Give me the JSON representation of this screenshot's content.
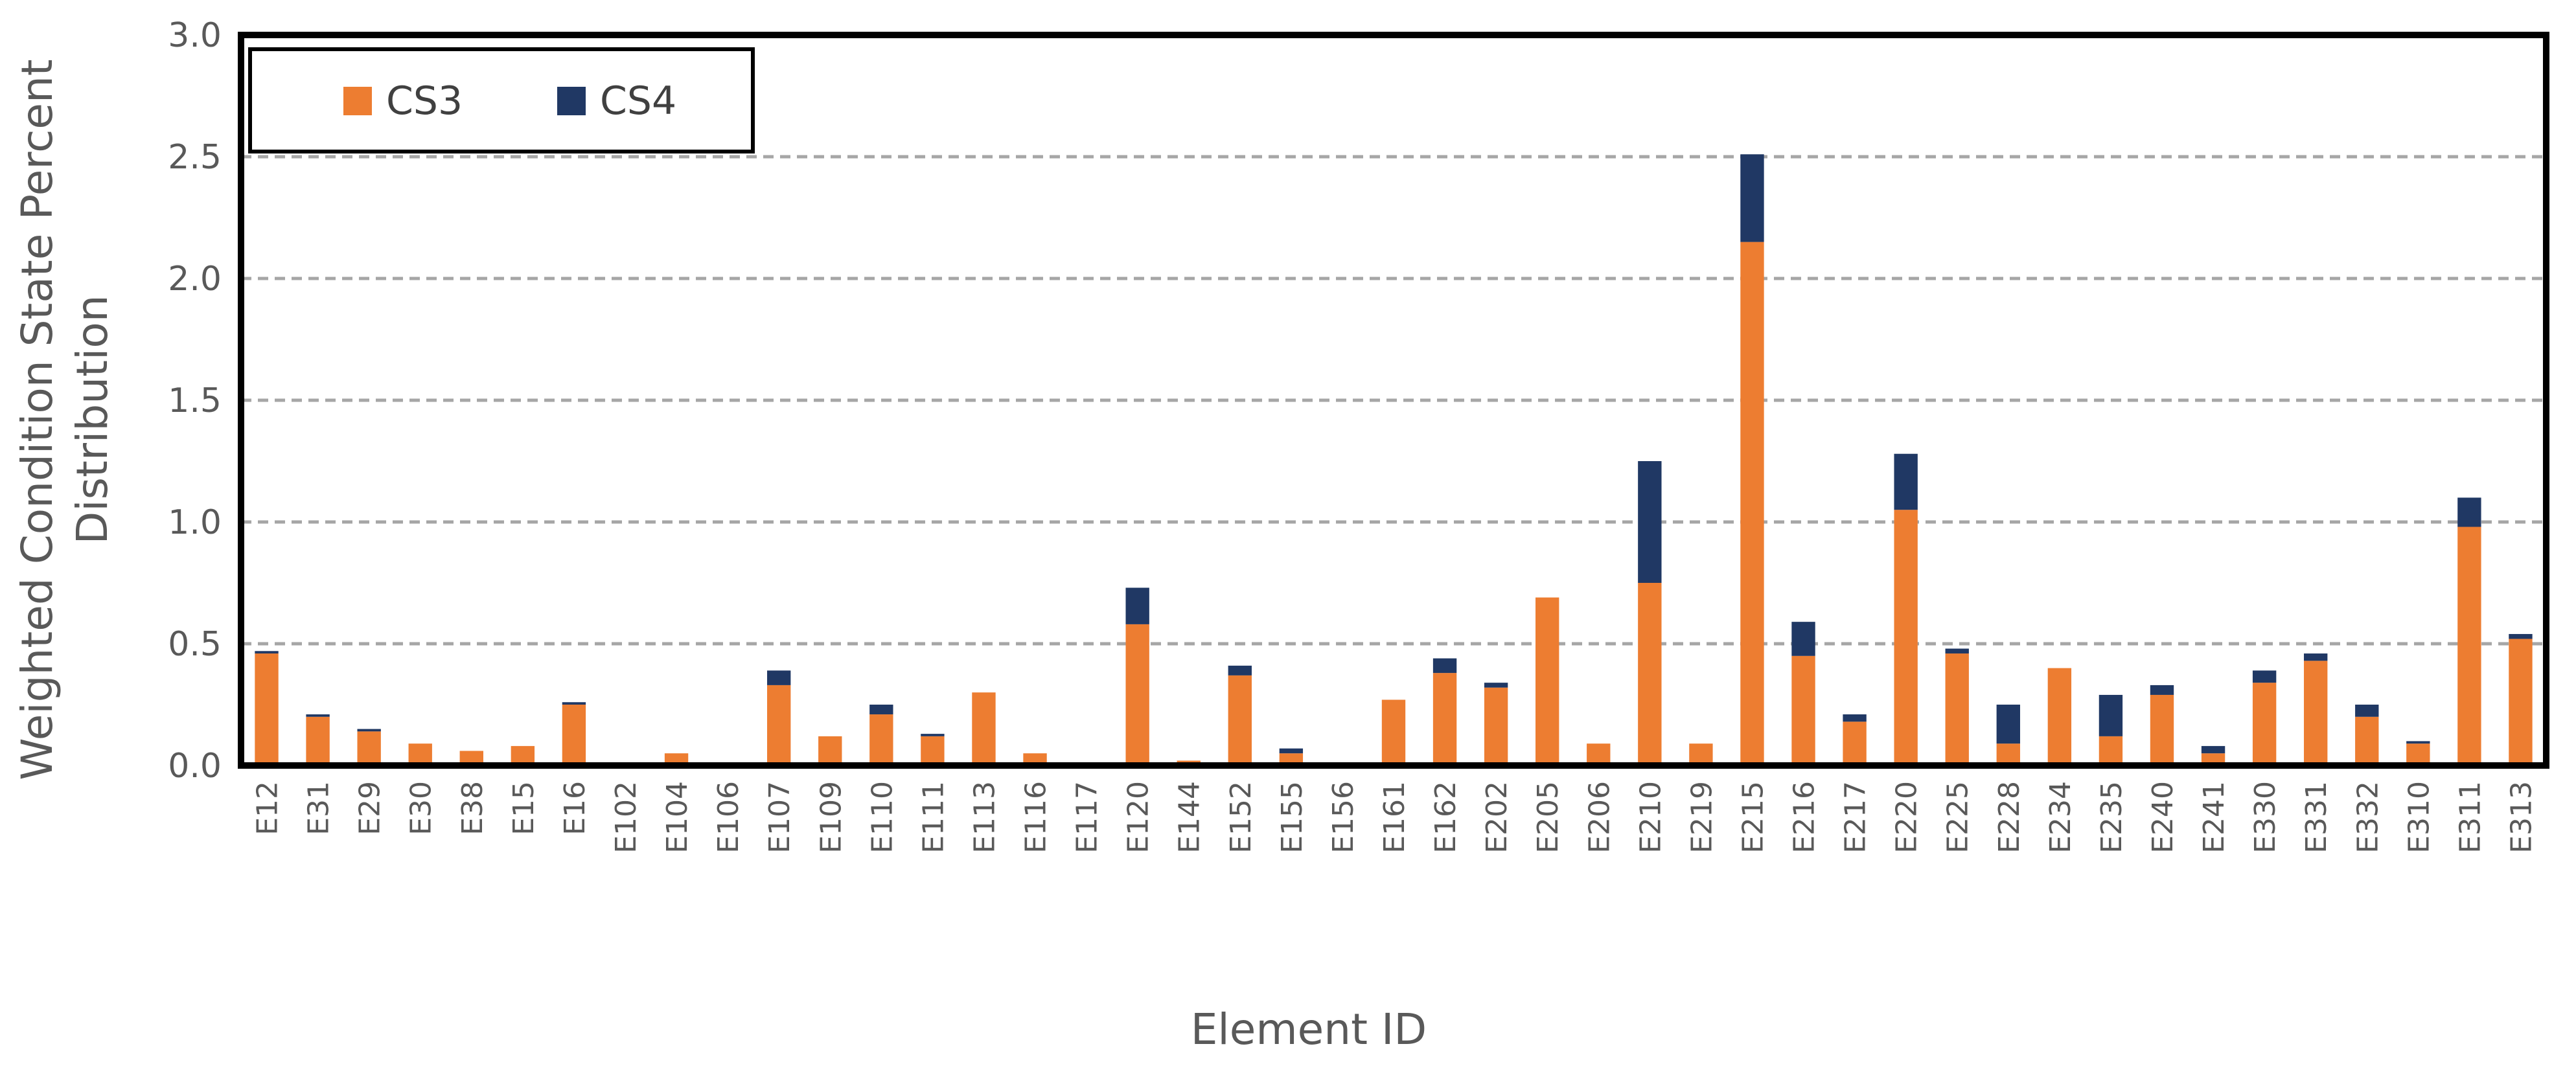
{
  "chart_data": {
    "type": "bar",
    "stacked": true,
    "title": "",
    "xlabel": "Element ID",
    "ylabel_lines": [
      "Weighted Condition State Percent",
      "Distribution"
    ],
    "ylim": [
      0,
      3.0
    ],
    "yticks": [
      "0.0",
      "0.5",
      "1.0",
      "1.5",
      "2.0",
      "2.5",
      "3.0"
    ],
    "grid": "horizontal dashed",
    "legend_position": "top-left",
    "categories": [
      "E12",
      "E31",
      "E29",
      "E30",
      "E38",
      "E15",
      "E16",
      "E102",
      "E104",
      "E106",
      "E107",
      "E109",
      "E110",
      "E111",
      "E113",
      "E116",
      "E117",
      "E120",
      "E144",
      "E152",
      "E155",
      "E156",
      "E161",
      "E162",
      "E202",
      "E205",
      "E206",
      "E210",
      "E219",
      "E215",
      "E216",
      "E217",
      "E220",
      "E225",
      "E228",
      "E234",
      "E235",
      "E240",
      "E241",
      "E330",
      "E331",
      "E332",
      "E310",
      "E311",
      "E313"
    ],
    "series": [
      {
        "name": "CS3",
        "color": "#ED7D31",
        "values": [
          0.46,
          0.2,
          0.14,
          0.09,
          0.06,
          0.08,
          0.25,
          0.01,
          0.05,
          0.01,
          0.33,
          0.12,
          0.21,
          0.12,
          0.3,
          0.05,
          0.01,
          0.58,
          0.02,
          0.37,
          0.05,
          0.01,
          0.27,
          0.38,
          0.32,
          0.69,
          0.09,
          0.75,
          0.09,
          2.15,
          0.45,
          0.18,
          1.05,
          0.46,
          0.09,
          0.4,
          0.12,
          0.29,
          0.05,
          0.34,
          0.43,
          0.2,
          0.09,
          0.98,
          0.52
        ]
      },
      {
        "name": "CS4",
        "color": "#203864",
        "values": [
          0.01,
          0.01,
          0.01,
          0.0,
          0.0,
          0.0,
          0.01,
          0.0,
          0.0,
          0.0,
          0.06,
          0.0,
          0.04,
          0.01,
          0.0,
          0.0,
          0.0,
          0.15,
          0.0,
          0.04,
          0.02,
          0.0,
          0.0,
          0.06,
          0.02,
          0.0,
          0.0,
          0.5,
          0.0,
          0.36,
          0.14,
          0.03,
          0.23,
          0.02,
          0.16,
          0.0,
          0.17,
          0.04,
          0.03,
          0.05,
          0.03,
          0.05,
          0.01,
          0.12,
          0.02
        ]
      }
    ]
  }
}
